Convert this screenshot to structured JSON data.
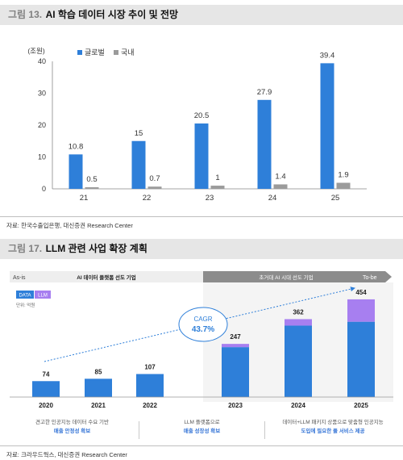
{
  "fig1": {
    "num": "그림 13.",
    "title": "AI 학습 데이터 시장 추이 및 전망",
    "source": "자료: 한국수출입은행, 대신증권 Research Center"
  },
  "fig2": {
    "num": "그림 17.",
    "title": "LLM 관련 사업 확장 계획",
    "source": "자료: 크라우드웍스, 대신증권 Research Center",
    "phase_left": "As-is",
    "phase_left_text": "AI 데이터 플랫폼 선도 기업",
    "phase_right_text": "초거대 AI 시대 선도 기업",
    "phase_right": "To-be",
    "legend_data": "DATA",
    "legend_llm": "LLM",
    "unit": "단위: 억원",
    "cagr_label": "CAGR",
    "cagr_value": "43.7%",
    "footer": [
      {
        "line1": "견고한 인공지능 데이터 수요 기반",
        "line2": "매출 안정성 확보"
      },
      {
        "line1": "LLM 플랫폼으로",
        "line2": "매출 성장성 확보"
      },
      {
        "line1": "데이터+LLM 패키지 상품으로 맞춤형 인공지능",
        "line2": "도입에 필요한 풀 서비스 제공"
      }
    ]
  },
  "colors": {
    "global": "#2e7fd9",
    "domestic": "#9b9b9b",
    "data_bar": "#2e7fd9",
    "llm_bar": "#a77ff0",
    "cagr": "#2e7fd9"
  },
  "chart_data": [
    {
      "type": "bar",
      "title": "AI 학습 데이터 시장 추이 및 전망",
      "ylabel": "(조원)",
      "categories": [
        "21",
        "22",
        "23",
        "24",
        "25"
      ],
      "ylim": [
        0,
        40
      ],
      "yticks": [
        0,
        10,
        20,
        30,
        40
      ],
      "grid": false,
      "legend": "top-left",
      "series": [
        {
          "name": "글로벌",
          "values": [
            10.8,
            15,
            20.5,
            27.9,
            39.4
          ],
          "labels": [
            "10.8",
            "15",
            "20.5",
            "27.9",
            "39.4"
          ]
        },
        {
          "name": "국내",
          "values": [
            0.5,
            0.7,
            1,
            1.4,
            1.9
          ],
          "labels": [
            "0.5",
            "0.7",
            "1",
            "1.4",
            "1.9"
          ]
        }
      ]
    },
    {
      "type": "bar",
      "stacked": true,
      "title": "LLM 관련 사업 확장 계획",
      "ylabel": "단위: 억원",
      "categories": [
        "2020",
        "2021",
        "2022",
        "2023",
        "2024",
        "2025"
      ],
      "totals": [
        "74",
        "85",
        "107",
        "247",
        "362",
        "454"
      ],
      "series": [
        {
          "name": "DATA",
          "values": [
            74,
            85,
            107,
            232,
            332,
            350
          ]
        },
        {
          "name": "LLM",
          "values": [
            0,
            0,
            0,
            15,
            30,
            104
          ]
        }
      ],
      "ylim": [
        0,
        480
      ],
      "grid": false,
      "legend": "top-left"
    }
  ]
}
